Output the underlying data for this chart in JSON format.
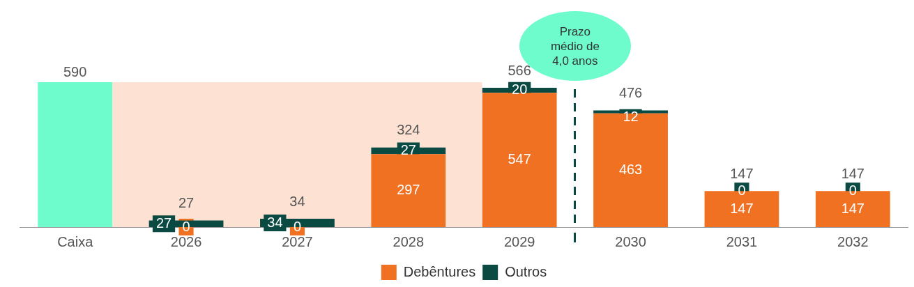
{
  "chart_data": {
    "type": "bar",
    "stacked": true,
    "categories": [
      "Caixa",
      "2026",
      "2027",
      "2028",
      "2029",
      "2030",
      "2031",
      "2032"
    ],
    "series": [
      {
        "color": "#6efccc",
        "values": [
          590,
          null,
          null,
          null,
          null,
          null,
          null,
          null
        ]
      },
      {
        "name": "Debêntures",
        "color": "#f07122",
        "values": [
          null,
          0,
          0,
          297,
          547,
          463,
          147,
          147
        ],
        "value_labels": [
          null,
          "0",
          "0",
          "297",
          "547",
          "463",
          "147",
          "147"
        ]
      },
      {
        "name": "Outros",
        "color": "#0b4a42",
        "values": [
          null,
          27,
          34,
          27,
          20,
          12,
          0,
          0
        ],
        "value_labels": [
          null,
          "27",
          "34",
          "27",
          "20",
          "12",
          "0",
          "0"
        ]
      }
    ],
    "totals": [
      "590",
      "27",
      "34",
      "324",
      "566",
      "476",
      "147",
      "147"
    ],
    "ylim": [
      0,
      590
    ],
    "tick_labels": "x",
    "grid": false,
    "legend": "bottom",
    "bands": [
      {
        "axis": "x",
        "from": "Caixa",
        "to": "2029",
        "color": "#fde2d3"
      }
    ],
    "annotations": [
      "Prazo médio de 4,0 anos"
    ]
  }
}
